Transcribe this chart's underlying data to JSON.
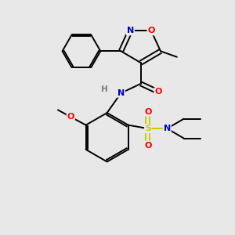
{
  "bg_color": "#e8e8e8",
  "atom_colors": {
    "N": "#0000cc",
    "O": "#ff0000",
    "S": "#cccc00",
    "C": "#000000",
    "H": "#7a7a7a"
  },
  "lw": 1.4,
  "fs": 8.5
}
